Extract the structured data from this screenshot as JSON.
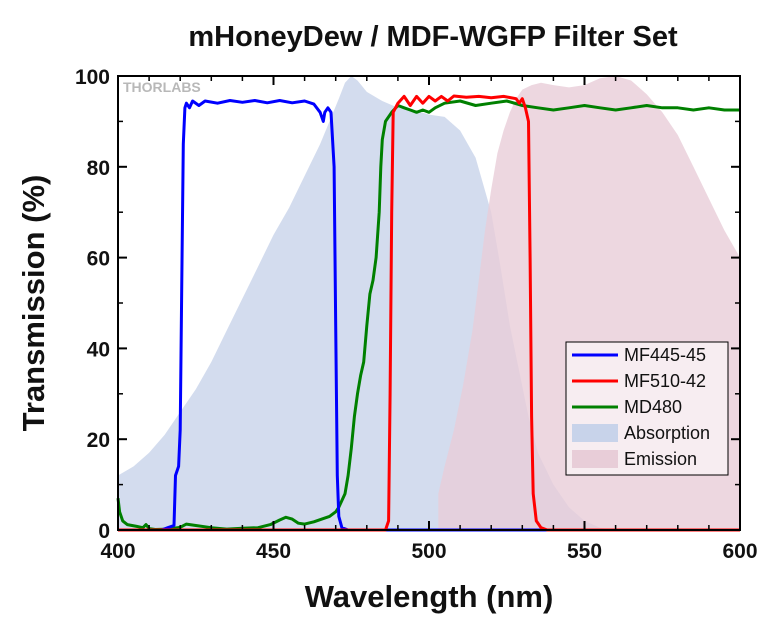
{
  "chart_data": {
    "type": "line",
    "title": "mHoneyDew / MDF-WGFP Filter Set",
    "xlabel": "Wavelength (nm)",
    "ylabel": "Transmission (%)",
    "xlim": [
      400,
      600
    ],
    "ylim": [
      0,
      100
    ],
    "x_ticks": [
      400,
      450,
      500,
      550,
      600
    ],
    "y_ticks": [
      0,
      20,
      40,
      60,
      80,
      100
    ],
    "grid": false,
    "legend_position": "lower-right",
    "logo": "THORLABS",
    "series": [
      {
        "name": "MF445-45",
        "kind": "line",
        "color": "#0000ff",
        "points": [
          [
            400,
            0
          ],
          [
            414,
            0
          ],
          [
            416,
            0.5
          ],
          [
            418,
            1
          ],
          [
            418.5,
            12
          ],
          [
            419.5,
            14
          ],
          [
            420,
            22
          ],
          [
            420.5,
            55
          ],
          [
            421,
            85
          ],
          [
            421.5,
            93
          ],
          [
            422,
            94
          ],
          [
            423,
            93
          ],
          [
            424,
            94.5
          ],
          [
            426,
            93.5
          ],
          [
            428,
            94.5
          ],
          [
            432,
            94
          ],
          [
            436,
            94.6
          ],
          [
            440,
            94.2
          ],
          [
            444,
            94.6
          ],
          [
            448,
            94.1
          ],
          [
            452,
            94.6
          ],
          [
            456,
            94.1
          ],
          [
            460,
            94.5
          ],
          [
            463,
            93.8
          ],
          [
            465,
            92
          ],
          [
            466,
            90
          ],
          [
            466.5,
            92
          ],
          [
            467.5,
            93
          ],
          [
            468.5,
            92
          ],
          [
            469.5,
            80
          ],
          [
            470,
            45
          ],
          [
            470.5,
            12
          ],
          [
            471,
            3
          ],
          [
            472,
            0.5
          ],
          [
            474,
            0
          ],
          [
            600,
            0
          ]
        ]
      },
      {
        "name": "MF510-42",
        "kind": "line",
        "color": "#ff0000",
        "points": [
          [
            400,
            0
          ],
          [
            486,
            0
          ],
          [
            487,
            2
          ],
          [
            487.5,
            30
          ],
          [
            488,
            70
          ],
          [
            488.5,
            92
          ],
          [
            490,
            94
          ],
          [
            492,
            95.5
          ],
          [
            494,
            93.5
          ],
          [
            496,
            95.5
          ],
          [
            498,
            94
          ],
          [
            500,
            95.5
          ],
          [
            502,
            94.5
          ],
          [
            504,
            95.5
          ],
          [
            506,
            94.5
          ],
          [
            508,
            95.6
          ],
          [
            512,
            95.3
          ],
          [
            516,
            95.5
          ],
          [
            520,
            95.2
          ],
          [
            524,
            95.5
          ],
          [
            528,
            95
          ],
          [
            529,
            94
          ],
          [
            530,
            95
          ],
          [
            531,
            93
          ],
          [
            532,
            90
          ],
          [
            532.5,
            60
          ],
          [
            533,
            25
          ],
          [
            533.5,
            8
          ],
          [
            534.5,
            2
          ],
          [
            536,
            0.5
          ],
          [
            538,
            0
          ],
          [
            600,
            0
          ]
        ]
      },
      {
        "name": "MD480",
        "kind": "line",
        "color": "#008000",
        "points": [
          [
            400,
            7
          ],
          [
            400.5,
            4
          ],
          [
            401.5,
            2
          ],
          [
            403,
            1.2
          ],
          [
            406,
            0.8
          ],
          [
            408,
            0.5
          ],
          [
            409,
            1.2
          ],
          [
            410,
            0.3
          ],
          [
            412,
            0.1
          ],
          [
            416,
            0.2
          ],
          [
            420,
            0.6
          ],
          [
            422,
            1.3
          ],
          [
            425,
            1.0
          ],
          [
            430,
            0.5
          ],
          [
            435,
            0.2
          ],
          [
            440,
            0.4
          ],
          [
            445,
            0.5
          ],
          [
            449,
            1.2
          ],
          [
            452,
            2.2
          ],
          [
            454,
            2.8
          ],
          [
            456,
            2.4
          ],
          [
            458,
            1.5
          ],
          [
            460,
            1.3
          ],
          [
            463,
            1.8
          ],
          [
            466,
            2.5
          ],
          [
            468,
            3
          ],
          [
            470,
            4
          ],
          [
            471,
            5
          ],
          [
            473,
            8
          ],
          [
            474,
            12
          ],
          [
            475,
            18
          ],
          [
            476,
            25
          ],
          [
            477,
            30
          ],
          [
            478,
            34
          ],
          [
            479,
            37
          ],
          [
            480,
            45
          ],
          [
            481,
            52
          ],
          [
            482,
            55
          ],
          [
            483,
            60
          ],
          [
            484,
            70
          ],
          [
            484.5,
            80
          ],
          [
            485,
            86
          ],
          [
            486,
            90
          ],
          [
            488,
            92
          ],
          [
            490,
            93.5
          ],
          [
            492,
            93
          ],
          [
            494,
            92.5
          ],
          [
            496,
            92
          ],
          [
            498,
            92.5
          ],
          [
            500,
            92
          ],
          [
            502,
            93
          ],
          [
            505,
            94
          ],
          [
            510,
            94.5
          ],
          [
            515,
            93.5
          ],
          [
            520,
            94
          ],
          [
            525,
            94.5
          ],
          [
            530,
            93.5
          ],
          [
            535,
            93
          ],
          [
            540,
            92.5
          ],
          [
            545,
            93
          ],
          [
            550,
            93.5
          ],
          [
            555,
            93
          ],
          [
            560,
            92.5
          ],
          [
            565,
            93
          ],
          [
            570,
            93.5
          ],
          [
            575,
            93
          ],
          [
            580,
            93
          ],
          [
            585,
            92.5
          ],
          [
            590,
            93
          ],
          [
            595,
            92.5
          ],
          [
            600,
            92.5
          ]
        ]
      },
      {
        "name": "Absorption",
        "kind": "area",
        "color": "#c8d3ea",
        "points": [
          [
            400,
            12
          ],
          [
            405,
            14
          ],
          [
            410,
            17
          ],
          [
            415,
            21
          ],
          [
            420,
            26
          ],
          [
            425,
            31
          ],
          [
            430,
            37
          ],
          [
            435,
            44
          ],
          [
            440,
            51
          ],
          [
            445,
            58
          ],
          [
            450,
            65
          ],
          [
            455,
            71
          ],
          [
            460,
            78
          ],
          [
            465,
            85
          ],
          [
            468,
            90
          ],
          [
            471,
            95
          ],
          [
            473,
            98.5
          ],
          [
            475,
            100
          ],
          [
            477,
            99
          ],
          [
            480,
            96.5
          ],
          [
            485,
            94.5
          ],
          [
            490,
            93
          ],
          [
            495,
            92.5
          ],
          [
            500,
            91.5
          ],
          [
            505,
            91
          ],
          [
            510,
            88
          ],
          [
            515,
            82
          ],
          [
            520,
            70
          ],
          [
            523,
            58
          ],
          [
            526,
            45
          ],
          [
            529,
            35
          ],
          [
            532,
            25
          ],
          [
            535,
            17
          ],
          [
            540,
            10
          ],
          [
            545,
            5
          ],
          [
            550,
            2
          ],
          [
            555,
            0.5
          ],
          [
            560,
            0
          ]
        ]
      },
      {
        "name": "Emission",
        "kind": "area",
        "color": "#e8cdd8",
        "points": [
          [
            503,
            0
          ],
          [
            503,
            8
          ],
          [
            505,
            14
          ],
          [
            508,
            22
          ],
          [
            511,
            32
          ],
          [
            514,
            44
          ],
          [
            516,
            55
          ],
          [
            518,
            66
          ],
          [
            520,
            75
          ],
          [
            522,
            83
          ],
          [
            524,
            88
          ],
          [
            526,
            92
          ],
          [
            528,
            95
          ],
          [
            530,
            97
          ],
          [
            533,
            98
          ],
          [
            536,
            98.5
          ],
          [
            540,
            98
          ],
          [
            545,
            97.5
          ],
          [
            550,
            98
          ],
          [
            555,
            99.5
          ],
          [
            560,
            100
          ],
          [
            565,
            99
          ],
          [
            570,
            96
          ],
          [
            575,
            92
          ],
          [
            580,
            87
          ],
          [
            585,
            80
          ],
          [
            590,
            73
          ],
          [
            595,
            66
          ],
          [
            600,
            60
          ],
          [
            600,
            0
          ]
        ]
      }
    ]
  }
}
